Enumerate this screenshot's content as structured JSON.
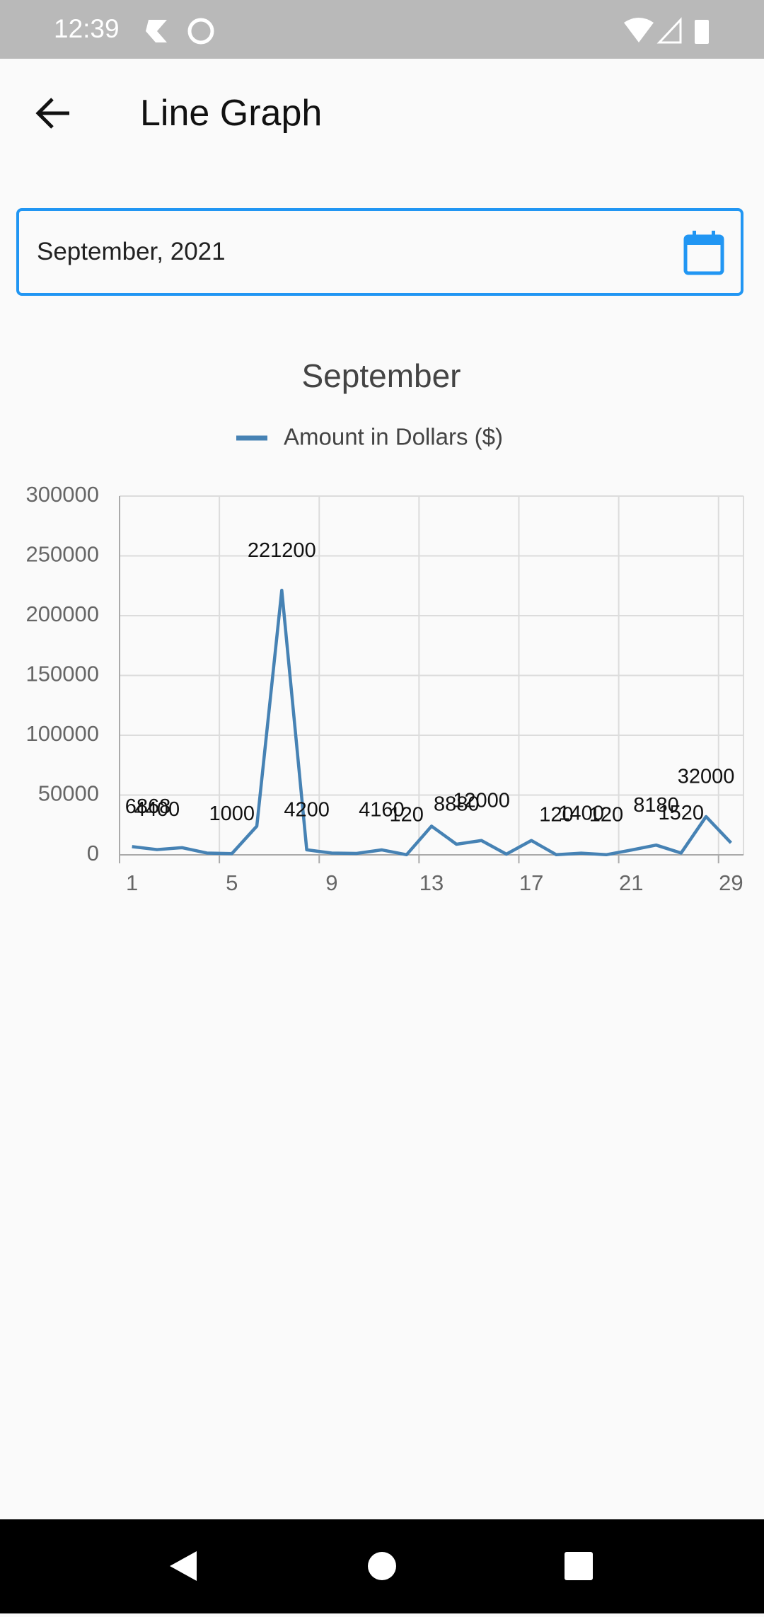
{
  "status_bar": {
    "time": "12:39"
  },
  "app_bar": {
    "title": "Line Graph"
  },
  "date_field": {
    "text": "September, 2021"
  },
  "chart_data": {
    "type": "line",
    "title": "September",
    "categories": [
      "1",
      null,
      null,
      null,
      "5",
      null,
      null,
      null,
      "9",
      null,
      null,
      null,
      "13",
      null,
      null,
      null,
      "17",
      null,
      null,
      null,
      "21",
      null,
      null,
      null,
      "29"
    ],
    "series": [
      {
        "name": "Amount in Dollars ($)",
        "color": "#4682b4",
        "values": [
          6868,
          4400,
          6000,
          1500,
          1000,
          24000,
          221200,
          4200,
          1500,
          1200,
          4160,
          120,
          24000,
          8880,
          12000,
          600,
          12000,
          120,
          1400,
          120,
          4000,
          8180,
          1520,
          32000,
          10000
        ],
        "value_labels": [
          "6868",
          "4400",
          null,
          null,
          "1000",
          null,
          "221200",
          "4200",
          null,
          null,
          "4160",
          "120",
          null,
          "8880",
          "12000",
          null,
          null,
          "120",
          "1400",
          "120",
          null,
          "8180",
          "1520",
          "32000",
          null
        ]
      }
    ],
    "ylim": [
      0,
      300000
    ],
    "yticks": [
      0,
      50000,
      100000,
      150000,
      200000,
      250000,
      300000
    ],
    "grid": true,
    "legend": "top"
  }
}
